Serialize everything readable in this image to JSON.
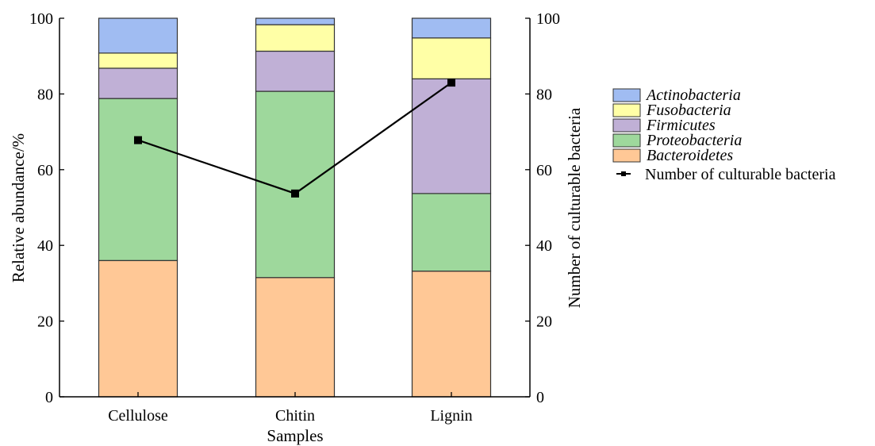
{
  "chart_data": {
    "type": "bar",
    "stacked": true,
    "categories": [
      "Cellulose",
      "Chitin",
      "Lignin"
    ],
    "xlabel": "Samples",
    "ylabel": "Relative abundance/%",
    "ylim": [
      0,
      100
    ],
    "yticks": [
      "0",
      "20",
      "40",
      "60",
      "80",
      "100"
    ],
    "y2label": "Number of culturable bacteria",
    "y2lim": [
      0,
      100
    ],
    "y2ticks": [
      "0",
      "20",
      "40",
      "60",
      "80",
      "100"
    ],
    "legend_position": "right",
    "series": [
      {
        "name": "Bacteroidetes",
        "color": "#FFC896",
        "values": [
          36,
          31.5,
          33.2
        ]
      },
      {
        "name": "Proteobacteria",
        "color": "#9ED89C",
        "values": [
          42.8,
          49.2,
          20.5
        ]
      },
      {
        "name": "Firmicutes",
        "color": "#C0B0D6",
        "values": [
          8,
          10.6,
          30.3
        ]
      },
      {
        "name": "Fusobacteria",
        "color": "#FFFFA6",
        "values": [
          4,
          7,
          10.8
        ]
      },
      {
        "name": "Actinobacteria",
        "color": "#A0BCF2",
        "values": [
          9.2,
          1.7,
          5.2
        ]
      }
    ],
    "line_series": {
      "name": "Number of culturable bacteria",
      "color": "#000000",
      "axis": "right",
      "values": [
        67.8,
        53.7,
        83
      ]
    }
  }
}
